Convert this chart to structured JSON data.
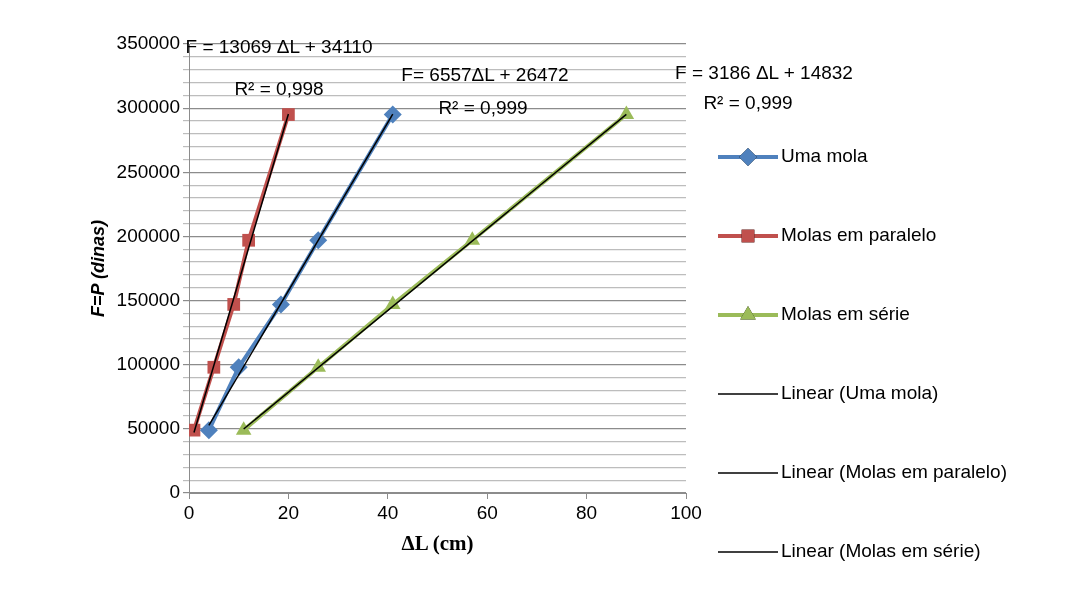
{
  "chart_data": {
    "type": "line",
    "xlabel": "ΔL (cm)",
    "ylabel": "F=P (dinas)",
    "xlim": [
      0,
      100
    ],
    "xticks": [
      0,
      20,
      40,
      60,
      80,
      100
    ],
    "ylim": [
      0,
      350000
    ],
    "yticks": [
      0,
      {
        "value": 10000,
        "label": null
      },
      {
        "value": 20000,
        "label": null
      },
      {
        "value": 30000,
        "label": null
      },
      {
        "value": 40000,
        "label": null
      },
      50000,
      {
        "value": 60000,
        "label": null
      },
      {
        "value": 70000,
        "label": null
      },
      {
        "value": 80000,
        "label": null
      },
      {
        "value": 90000,
        "label": null
      },
      100000,
      {
        "value": 110000,
        "label": null
      },
      {
        "value": 120000,
        "label": null
      },
      {
        "value": 130000,
        "label": null
      },
      {
        "value": 140000,
        "label": null
      },
      150000,
      {
        "value": 160000,
        "label": null
      },
      {
        "value": 170000,
        "label": null
      },
      {
        "value": 180000,
        "label": null
      },
      {
        "value": 190000,
        "label": null
      },
      200000,
      {
        "value": 210000,
        "label": null
      },
      {
        "value": 220000,
        "label": null
      },
      {
        "value": 230000,
        "label": null
      },
      {
        "value": 240000,
        "label": null
      },
      250000,
      {
        "value": 260000,
        "label": null
      },
      {
        "value": 270000,
        "label": null
      },
      {
        "value": 280000,
        "label": null
      },
      {
        "value": 290000,
        "label": null
      },
      300000,
      {
        "value": 310000,
        "label": null
      },
      {
        "value": 320000,
        "label": null
      },
      {
        "value": 330000,
        "label": null
      },
      {
        "value": 340000,
        "label": null
      },
      350000
    ],
    "grid": "y",
    "legend": "right",
    "line_style": "solid",
    "annotations": [
      "F = 13069 ΔL + 34110",
      "R² = 0,998",
      "F= 6557ΔL + 26472",
      "R² = 0,999",
      "F = 3186 ΔL + 14832",
      "R² = 0,999"
    ],
    "series": [
      {
        "name": "Uma mola",
        "color": "#4f81bd",
        "marker": "diamond",
        "x": [
          4,
          10,
          18.5,
          26,
          41
        ],
        "values": [
          49000,
          98000,
          147000,
          197000,
          295000
        ]
      },
      {
        "name": "Molas em paralelo",
        "color": "#c0504d",
        "marker": "square",
        "x": [
          1,
          5,
          9,
          12,
          20
        ],
        "values": [
          49000,
          98000,
          147000,
          197000,
          295000
        ]
      },
      {
        "name": "Molas em série",
        "color": "#9bbb59",
        "marker": "triangle",
        "x": [
          11,
          26,
          41,
          57,
          88
        ],
        "values": [
          49000,
          98000,
          147000,
          197000,
          295000
        ]
      },
      {
        "name": "Linear (Uma mola)",
        "color": "#000000",
        "marker": "none",
        "x": [
          4,
          41
        ],
        "values": [
          52700,
          295300
        ]
      },
      {
        "name": "Linear (Molas em paralelo)",
        "color": "#000000",
        "marker": "none",
        "x": [
          1,
          20
        ],
        "values": [
          47200,
          295500
        ]
      },
      {
        "name": "Linear (Molas em série)",
        "color": "#000000",
        "marker": "none",
        "x": [
          11,
          88
        ],
        "values": [
          49900,
          295200
        ]
      }
    ]
  }
}
